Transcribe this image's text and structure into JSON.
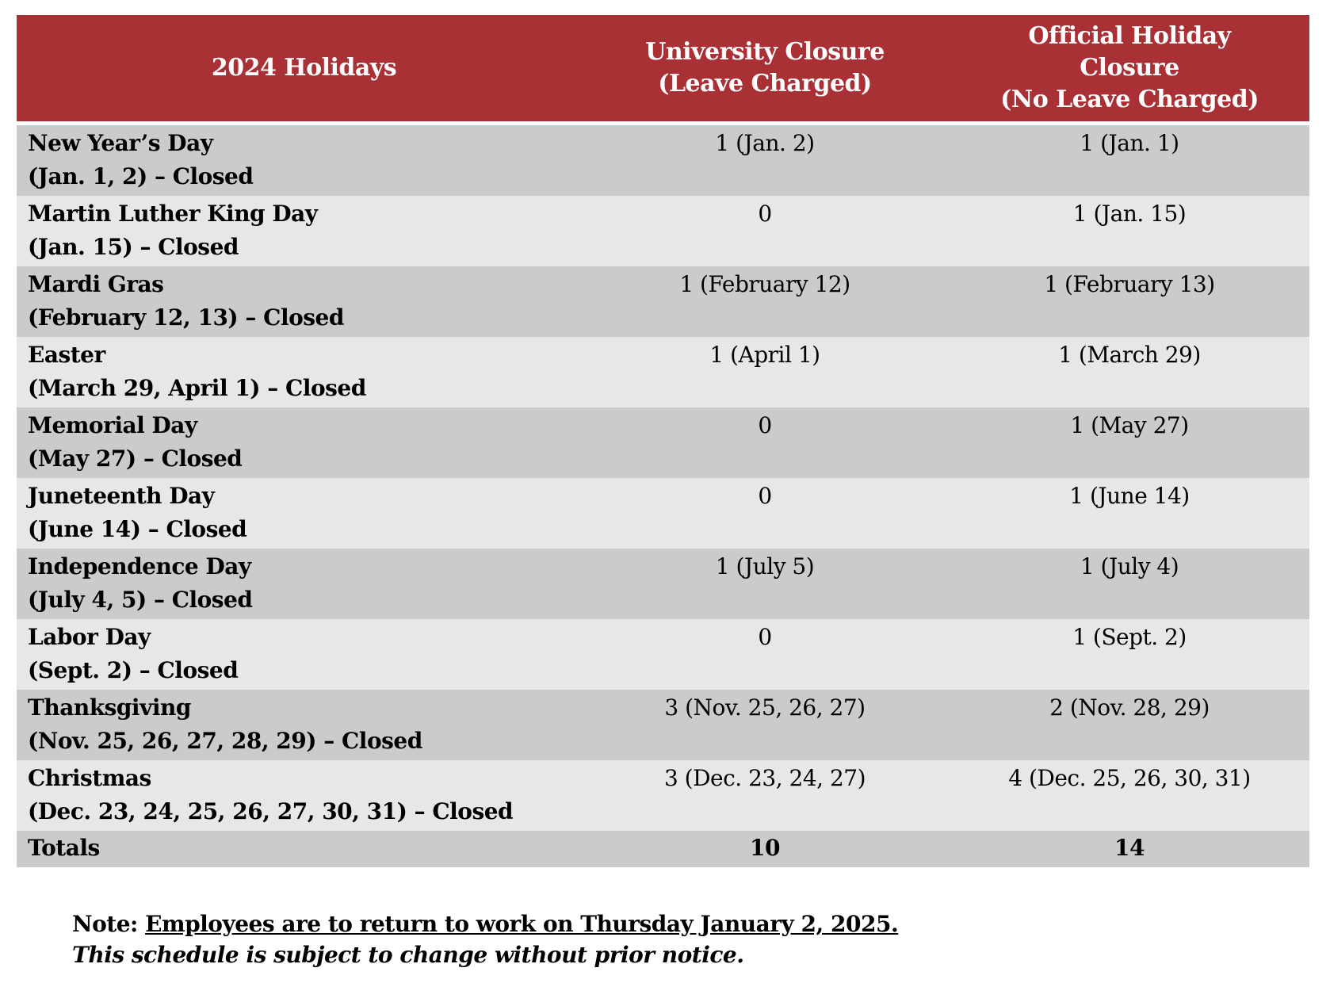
{
  "colors": {
    "header_background": "#a93136",
    "header_text": "#ffffff",
    "row_dark": "#cbcbcb",
    "row_light": "#e7e7e7",
    "body_text": "#000000"
  },
  "table": {
    "columns": {
      "holidays_header": "2024 Holidays",
      "university_closure_header": "University Closure\n(Leave Charged)",
      "official_closure_header": "Official Holiday\nClosure\n(No Leave Charged)"
    },
    "rows": [
      {
        "holiday": "New Year’s Day",
        "dates": "(Jan. 1, 2) – Closed",
        "university_closure": "1 (Jan. 2)",
        "official_closure": "1 (Jan. 1)"
      },
      {
        "holiday": "Martin Luther King Day",
        "dates": "(Jan. 15) – Closed",
        "university_closure": "0",
        "official_closure": "1 (Jan. 15)"
      },
      {
        "holiday": "Mardi Gras",
        "dates": "(February 12, 13) – Closed",
        "university_closure": "1 (February 12)",
        "official_closure": "1 (February 13)"
      },
      {
        "holiday": "Easter",
        "dates": "(March 29, April 1) – Closed",
        "university_closure": "1 (April 1)",
        "official_closure": "1 (March 29)"
      },
      {
        "holiday": "Memorial Day",
        "dates": "(May 27) – Closed",
        "university_closure": "0",
        "official_closure": "1 (May 27)"
      },
      {
        "holiday": "Juneteenth Day",
        "dates": "(June 14) – Closed",
        "university_closure": "0",
        "official_closure": "1 (June 14)"
      },
      {
        "holiday": "Independence Day",
        "dates": "(July 4, 5) – Closed",
        "university_closure": "1 (July 5)",
        "official_closure": "1 (July 4)"
      },
      {
        "holiday": "Labor Day",
        "dates": "(Sept. 2) – Closed",
        "university_closure": "0",
        "official_closure": "1 (Sept. 2)"
      },
      {
        "holiday": "Thanksgiving",
        "dates": "(Nov. 25, 26, 27, 28, 29) – Closed",
        "university_closure": "3 (Nov. 25, 26, 27)",
        "official_closure": "2 (Nov. 28, 29)"
      },
      {
        "holiday": "Christmas",
        "dates": "(Dec. 23, 24, 25, 26, 27, 30, 31) – Closed",
        "university_closure": "3 (Dec. 23, 24, 27)",
        "official_closure": "4 (Dec. 25, 26, 30, 31)"
      }
    ],
    "totals": {
      "label": "Totals",
      "university_closure": "10",
      "official_closure": "14"
    }
  },
  "notes": {
    "note_prefix": "Note: ",
    "note_underlined": "Employees are to return to work on Thursday January 2, 2025.",
    "disclaimer": "This schedule is subject to change without prior notice."
  }
}
